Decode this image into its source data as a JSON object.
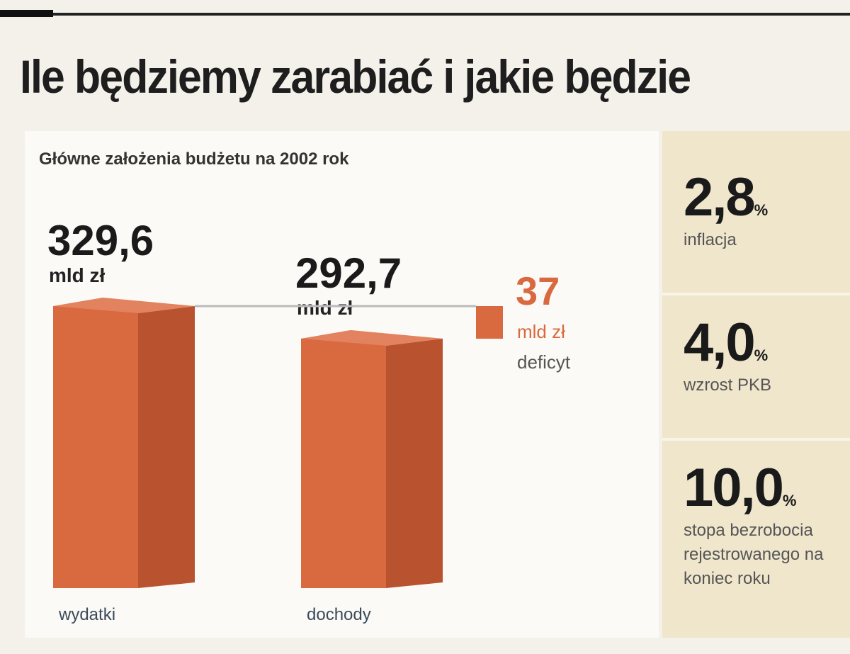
{
  "title": "Ile będziemy zarabiać i jakie będzie",
  "chart_data": {
    "type": "bar",
    "subtitle": "Główne założenia budżetu na 2002 rok",
    "unit": "mld zł",
    "categories": [
      "wydatki",
      "dochody"
    ],
    "values": [
      329.6,
      292.7
    ],
    "value_labels": [
      "329,6",
      "292,7"
    ],
    "color": "#d9693f",
    "deficit": {
      "value": 37,
      "name": "deficyt",
      "color": "#d9693f"
    }
  },
  "indicators": [
    {
      "value_label": "2,8",
      "unit": "%",
      "caption": "inflacja"
    },
    {
      "value_label": "4,0",
      "unit": "%",
      "caption": "wzrost PKB"
    },
    {
      "value_label": "10,0",
      "unit": "%",
      "caption": "stopa bezrobocia rejestrowanego na koniec roku"
    }
  ]
}
